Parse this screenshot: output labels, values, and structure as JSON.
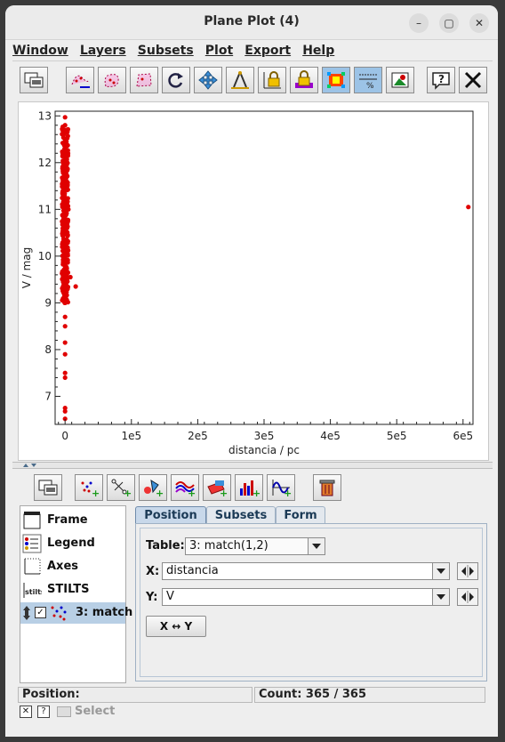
{
  "window": {
    "title": "Plane Plot (4)"
  },
  "menu": [
    "Window",
    "Layers",
    "Subsets",
    "Plot",
    "Export",
    "Help"
  ],
  "toolbar_icons": [
    "window-icon",
    "subset-draw-icon",
    "blob-icon",
    "polygon-icon",
    "rotate-icon",
    "move-icon",
    "compass-icon",
    "lock-axes-icon",
    "lock-color-icon",
    "heatmap-icon",
    "grid-icon",
    "image-icon",
    "help-icon",
    "close-icon"
  ],
  "layer_toolbar_icons": [
    "window-icon",
    "add-points-icon",
    "add-pairs-icon",
    "add-marker-icon",
    "add-lines-icon",
    "add-area-icon",
    "add-histogram-icon",
    "add-function-icon",
    "delete-icon"
  ],
  "chart_data": {
    "type": "scatter",
    "xlabel": "distancia / pc",
    "ylabel": "V / mag",
    "xlim": [
      -15000,
      615000
    ],
    "ylim": [
      6.4,
      13.1
    ],
    "x_ticks": [
      "0",
      "1e5",
      "2e5",
      "3e5",
      "4e5",
      "5e5",
      "6e5"
    ],
    "x_tick_values": [
      0,
      100000,
      200000,
      300000,
      400000,
      500000,
      600000
    ],
    "y_ticks": [
      "7",
      "8",
      "9",
      "10",
      "11",
      "12",
      "13"
    ],
    "y_tick_values": [
      7,
      8,
      9,
      10,
      11,
      12,
      13
    ],
    "color": "#e00000",
    "grid": false,
    "points": [
      [
        608000,
        11.05
      ],
      [
        16000,
        9.35
      ],
      [
        8000,
        9.55
      ],
      [
        -4000,
        9.5
      ],
      [
        3000,
        10.6
      ],
      [
        5000,
        11.0
      ],
      [
        0,
        12.97
      ],
      [
        0,
        6.52
      ],
      [
        0,
        6.68
      ],
      [
        0,
        6.75
      ],
      [
        0,
        7.4
      ],
      [
        0,
        7.5
      ],
      [
        0,
        7.9
      ],
      [
        0,
        8.15
      ],
      [
        0,
        8.5
      ],
      [
        0,
        8.7
      ],
      [
        0,
        9.0
      ],
      [
        0,
        9.2
      ],
      [
        0,
        9.8
      ],
      [
        0,
        10.2
      ],
      [
        0,
        10.5
      ],
      [
        0,
        11.6
      ],
      [
        0,
        12.5
      ],
      [
        0,
        12.8
      ]
    ],
    "dense_band": {
      "x": 0,
      "from": 9.0,
      "to": 12.8,
      "count": 340
    }
  },
  "layers_list": [
    {
      "name": "Frame",
      "icon": "frame-icon"
    },
    {
      "name": "Legend",
      "icon": "legend-icon"
    },
    {
      "name": "Axes",
      "icon": "axes-icon"
    },
    {
      "name": "STILTS",
      "icon": "stilts-icon"
    },
    {
      "name": "3: match",
      "icon": "scatter-layer-icon",
      "checked": true
    }
  ],
  "tabs": [
    "Position",
    "Subsets",
    "Form"
  ],
  "position": {
    "table_label": "Table:",
    "table_value": "3: match(1,2)",
    "x_label": "X:",
    "x_value": "distancia",
    "y_label": "Y:",
    "y_value": "V",
    "swap_label": "X ↔ Y"
  },
  "status": {
    "position_label": "Position:",
    "count": "Count: 365 / 365"
  },
  "bottom": {
    "select_label": "Select"
  }
}
